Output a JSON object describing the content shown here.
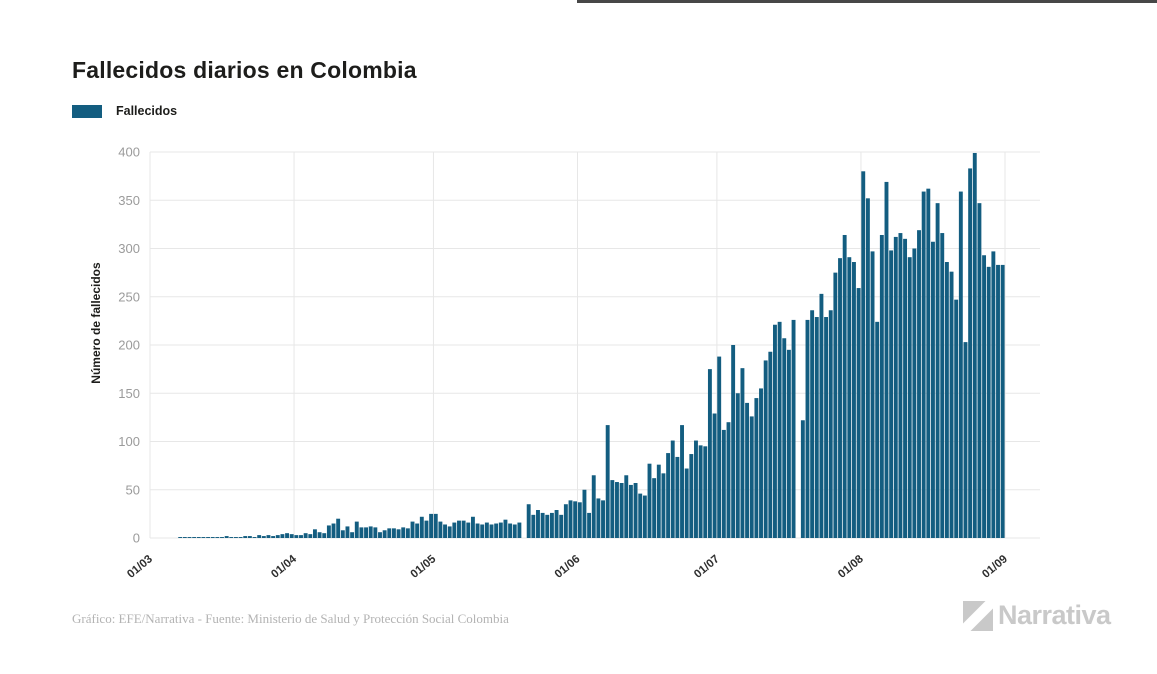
{
  "page": {
    "title": "Fallecidos diarios en Colombia"
  },
  "legend": {
    "label": "Fallecidos",
    "swatch_color": "#135d80"
  },
  "footer": {
    "credit": "Gráfico: EFE/Narrativa - Fuente: Ministerio de Salud y Protección Social Colombia"
  },
  "brand": {
    "name": "Narrativa"
  },
  "colors": {
    "bar": "#135d80",
    "grid": "#e7e7e7",
    "ytick_text": "#9b9b9b",
    "xtick_text": "#2f2f2f",
    "axis_title": "#1d1d1b"
  },
  "chart_data": {
    "type": "bar",
    "title": "Fallecidos diarios en Colombia",
    "xlabel": "",
    "ylabel": "Número de fallecidos",
    "ylim": [
      0,
      400
    ],
    "yticks": [
      0,
      50,
      100,
      150,
      200,
      250,
      300,
      350,
      400
    ],
    "xticks": [
      "01/03",
      "01/04",
      "01/05",
      "01/06",
      "01/07",
      "01/08",
      "01/09"
    ],
    "xtick_day_offsets": [
      0,
      31,
      61,
      92,
      122,
      153,
      184
    ],
    "grid": true,
    "legend": [
      "Fallecidos"
    ],
    "legend_position": "top-left",
    "series_name": "Fallecidos",
    "x_unit": "day",
    "x_range": "01/03 - 01/09",
    "values": [
      0,
      0,
      0,
      0,
      0,
      0,
      1,
      1,
      1,
      1,
      1,
      1,
      1,
      1,
      1,
      1,
      2,
      1,
      1,
      1,
      2,
      2,
      1,
      3,
      2,
      3,
      2,
      3,
      4,
      5,
      4,
      3,
      3,
      5,
      4,
      9,
      6,
      5,
      13,
      15,
      20,
      8,
      12,
      6,
      17,
      11,
      11,
      12,
      11,
      6,
      8,
      10,
      10,
      9,
      11,
      10,
      17,
      15,
      22,
      18,
      25,
      25,
      17,
      14,
      12,
      16,
      18,
      18,
      16,
      22,
      15,
      14,
      16,
      14,
      15,
      16,
      19,
      15,
      14,
      16,
      0,
      35,
      24,
      29,
      26,
      24,
      26,
      29,
      24,
      35,
      39,
      38,
      37,
      50,
      26,
      65,
      41,
      39,
      117,
      60,
      58,
      57,
      65,
      55,
      57,
      46,
      44,
      77,
      62,
      76,
      67,
      88,
      101,
      84,
      117,
      72,
      87,
      101,
      96,
      95,
      175,
      129,
      188,
      112,
      120,
      200,
      150,
      176,
      140,
      126,
      145,
      155,
      184,
      193,
      221,
      224,
      207,
      195,
      226,
      0,
      122,
      226,
      236,
      229,
      253,
      229,
      236,
      275,
      290,
      314,
      291,
      286,
      259,
      380,
      352,
      297,
      224,
      314,
      369,
      298,
      312,
      316,
      310,
      291,
      300,
      319,
      359,
      362,
      307,
      347,
      316,
      286,
      276,
      247,
      359,
      203,
      383,
      399,
      347,
      293,
      281,
      297,
      283,
      283
    ]
  }
}
